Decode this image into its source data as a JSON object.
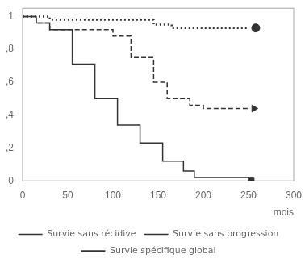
{
  "chart_data": {
    "type": "line",
    "xlabel": "mois",
    "xlim": [
      0,
      300
    ],
    "ylim": [
      0,
      1.05
    ],
    "xticks": [
      0,
      50,
      100,
      150,
      200,
      250,
      300
    ],
    "yticks": [
      0,
      {
        "value": 0.2,
        "label": ",2"
      },
      {
        "value": 0.4,
        "label": ",4"
      },
      {
        "value": 0.6,
        "label": ",6"
      },
      {
        "value": 0.8,
        "label": ",8"
      },
      1
    ],
    "grid": false,
    "legend": "bottom",
    "series": [
      {
        "name": "Survie sans récidive",
        "color": "#333333",
        "line_style": "solid",
        "marker": "square",
        "x": [
          0,
          15,
          15,
          30,
          30,
          55,
          55,
          80,
          80,
          105,
          105,
          130,
          130,
          155,
          155,
          178,
          178,
          190,
          190,
          250,
          250
        ],
        "values": [
          1.0,
          1.0,
          0.96,
          0.96,
          0.92,
          0.92,
          0.71,
          0.71,
          0.5,
          0.5,
          0.34,
          0.34,
          0.23,
          0.23,
          0.12,
          0.12,
          0.06,
          0.06,
          0.02,
          0.02,
          0.0
        ],
        "end_x": 253,
        "end_y": 0.0
      },
      {
        "name": "Survie sans progression",
        "color": "#333333",
        "line_style": "dashed",
        "marker": "arrow",
        "x": [
          0,
          15,
          15,
          30,
          30,
          100,
          100,
          120,
          120,
          145,
          145,
          160,
          160,
          185,
          185,
          200,
          200,
          250
        ],
        "values": [
          1.0,
          1.0,
          0.96,
          0.96,
          0.92,
          0.92,
          0.88,
          0.88,
          0.75,
          0.75,
          0.6,
          0.6,
          0.5,
          0.5,
          0.46,
          0.46,
          0.44,
          0.44
        ],
        "end_x": 256,
        "end_y": 0.44
      },
      {
        "name": "Survie spécifique global",
        "color": "#333333",
        "line_style": "dotted",
        "marker": "circle",
        "x": [
          0,
          30,
          30,
          145,
          145,
          165,
          165,
          250
        ],
        "values": [
          1.0,
          1.0,
          0.98,
          0.98,
          0.95,
          0.95,
          0.93,
          0.93
        ],
        "end_x": 258,
        "end_y": 0.93
      }
    ]
  }
}
